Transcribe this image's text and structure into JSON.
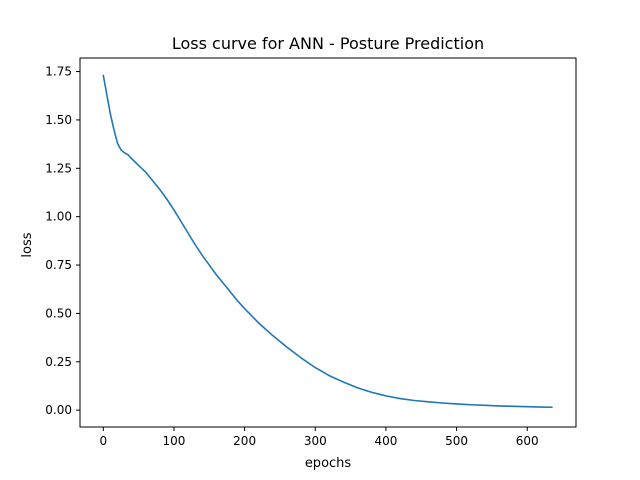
{
  "chart_data": {
    "type": "line",
    "title": "Loss curve for ANN - Posture Prediction",
    "xlabel": "epochs",
    "ylabel": "loss",
    "xlim": [
      -33,
      669
    ],
    "ylim": [
      -0.087,
      1.82
    ],
    "xticks": [
      0,
      100,
      200,
      300,
      400,
      500,
      600
    ],
    "yticks": [
      0.0,
      0.25,
      0.5,
      0.75,
      1.0,
      1.25,
      1.5,
      1.75
    ],
    "xtick_labels": [
      "0",
      "100",
      "200",
      "300",
      "400",
      "500",
      "600"
    ],
    "ytick_labels": [
      "0.00",
      "0.25",
      "0.50",
      "0.75",
      "1.00",
      "1.25",
      "1.50",
      "1.75"
    ],
    "grid": false,
    "series": [
      {
        "color": "#1f77b4",
        "x": [
          0,
          5,
          10,
          15,
          20,
          25,
          30,
          35,
          40,
          50,
          60,
          70,
          80,
          90,
          100,
          110,
          120,
          130,
          140,
          150,
          160,
          170,
          180,
          190,
          200,
          220,
          240,
          260,
          280,
          300,
          320,
          340,
          360,
          380,
          400,
          420,
          440,
          460,
          480,
          500,
          520,
          540,
          560,
          580,
          600,
          620,
          635
        ],
        "y": [
          1.73,
          1.63,
          1.53,
          1.45,
          1.38,
          1.345,
          1.33,
          1.32,
          1.3,
          1.265,
          1.23,
          1.185,
          1.14,
          1.09,
          1.035,
          0.975,
          0.915,
          0.855,
          0.8,
          0.75,
          0.7,
          0.655,
          0.61,
          0.565,
          0.525,
          0.45,
          0.385,
          0.325,
          0.27,
          0.22,
          0.178,
          0.145,
          0.115,
          0.092,
          0.074,
          0.06,
          0.05,
          0.043,
          0.037,
          0.032,
          0.028,
          0.025,
          0.022,
          0.02,
          0.018,
          0.016,
          0.015
        ]
      }
    ]
  }
}
